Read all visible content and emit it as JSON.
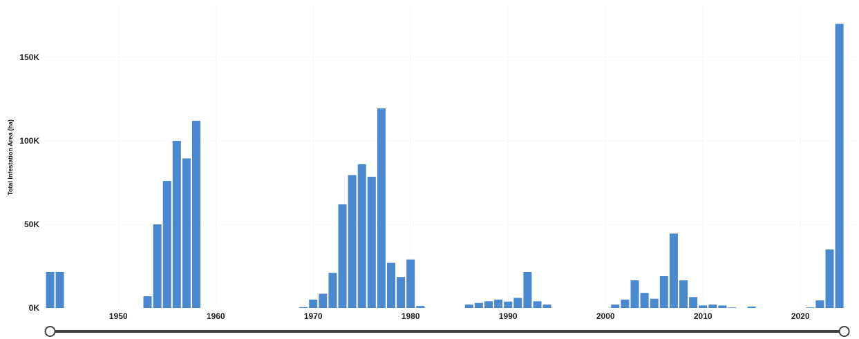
{
  "chart_data": {
    "type": "bar",
    "ylabel": "Total Infestation Area (ha)",
    "xlabel": "",
    "title": "",
    "ylim": [
      0,
      180000
    ],
    "xlim": [
      1943,
      2024
    ],
    "y_ticks": [
      {
        "value": 0,
        "label": "0K"
      },
      {
        "value": 50000,
        "label": "50K"
      },
      {
        "value": 100000,
        "label": "100K"
      },
      {
        "value": 150000,
        "label": "150K"
      }
    ],
    "x_ticks": [
      {
        "value": 1950,
        "label": "1950"
      },
      {
        "value": 1960,
        "label": "1960"
      },
      {
        "value": 1970,
        "label": "1970"
      },
      {
        "value": 1980,
        "label": "1980"
      },
      {
        "value": 1990,
        "label": "1990"
      },
      {
        "value": 2000,
        "label": "2000"
      },
      {
        "value": 2010,
        "label": "2010"
      },
      {
        "value": 2020,
        "label": "2020"
      }
    ],
    "grid": true,
    "bar_color": "#4a89cf",
    "categories": [
      1943,
      1944,
      1953,
      1954,
      1955,
      1956,
      1957,
      1958,
      1969,
      1970,
      1971,
      1972,
      1973,
      1974,
      1975,
      1976,
      1977,
      1978,
      1979,
      1980,
      1981,
      1986,
      1987,
      1988,
      1989,
      1990,
      1991,
      1992,
      1993,
      1994,
      2001,
      2002,
      2003,
      2004,
      2005,
      2006,
      2007,
      2008,
      2009,
      2010,
      2011,
      2012,
      2013,
      2015,
      2021,
      2022,
      2023,
      2024
    ],
    "values": [
      21500,
      21500,
      7000,
      50000,
      76000,
      100000,
      89500,
      112000,
      500,
      5000,
      8500,
      21000,
      62000,
      79500,
      86000,
      78500,
      119500,
      27000,
      18500,
      29000,
      1200,
      2000,
      3000,
      4000,
      5000,
      3800,
      6000,
      21500,
      4000,
      2000,
      2000,
      5000,
      16500,
      9000,
      5500,
      19000,
      44500,
      16500,
      6500,
      1500,
      2000,
      1500,
      300,
      800,
      300,
      4500,
      35000,
      170000
    ]
  },
  "range_slider": {
    "start": 1943,
    "end": 2024
  }
}
